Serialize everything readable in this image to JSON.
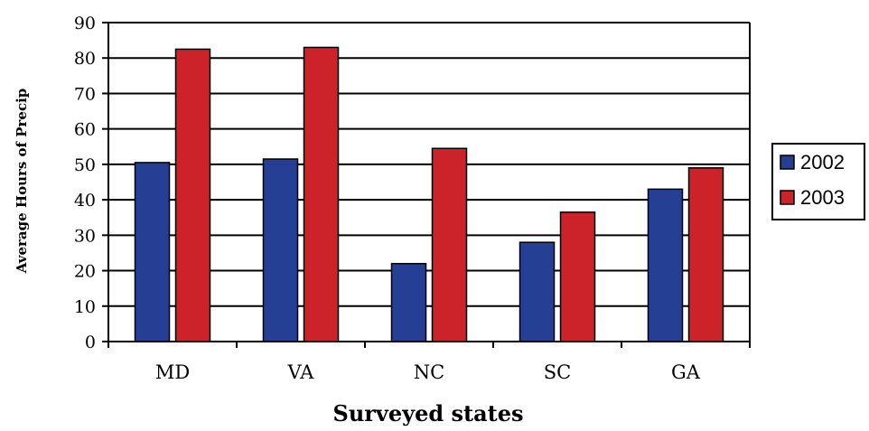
{
  "chart_data": {
    "type": "bar",
    "categories": [
      "MD",
      "VA",
      "NC",
      "SC",
      "GA"
    ],
    "series": [
      {
        "name": "2002",
        "values": [
          50.5,
          51.5,
          22,
          28,
          43
        ],
        "color": "#253f94"
      },
      {
        "name": "2003",
        "values": [
          82.5,
          83,
          54.5,
          36.5,
          49
        ],
        "color": "#cc2229"
      }
    ],
    "xlabel": "Surveyed states",
    "ylabel": "Average Hours of Precip",
    "ylim": [
      0,
      90
    ],
    "yticks": [
      0,
      10,
      20,
      30,
      40,
      50,
      60,
      70,
      80,
      90
    ],
    "grid": true,
    "legend_position": "right"
  }
}
